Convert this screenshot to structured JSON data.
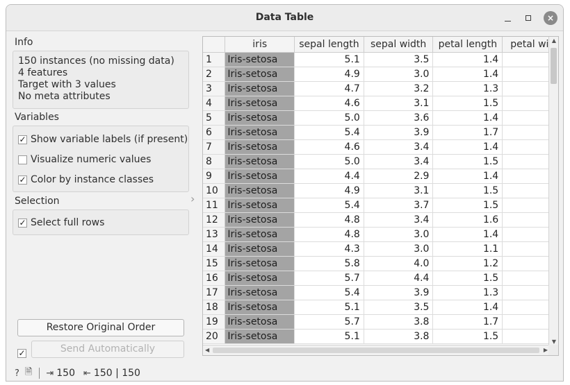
{
  "window": {
    "title": "Data Table",
    "close_glyph": "×"
  },
  "info": {
    "heading": "Info",
    "lines": [
      "150 instances (no missing data)",
      "4 features",
      "Target with 3 values",
      "No meta attributes"
    ]
  },
  "variables": {
    "heading": "Variables",
    "options": [
      {
        "label": "Show variable labels (if present)",
        "checked": true
      },
      {
        "label": "Visualize numeric values",
        "checked": false
      },
      {
        "label": "Color by instance classes",
        "checked": true
      }
    ]
  },
  "selection": {
    "heading": "Selection",
    "options": [
      {
        "label": "Select full rows",
        "checked": true
      }
    ]
  },
  "buttons": {
    "restore": "Restore Original Order",
    "send": "Send Automatically",
    "send_auto_checked": true
  },
  "statusbar": {
    "help_icon": "?",
    "report_icon": "report-icon",
    "input_count": "150",
    "output_count": "150 | 150"
  },
  "table": {
    "columns": [
      "iris",
      "sepal length",
      "sepal width",
      "petal length",
      "petal wi"
    ],
    "rows": [
      {
        "n": "1",
        "cls": "Iris-setosa",
        "v": [
          "5.1",
          "3.5",
          "1.4"
        ]
      },
      {
        "n": "2",
        "cls": "Iris-setosa",
        "v": [
          "4.9",
          "3.0",
          "1.4"
        ]
      },
      {
        "n": "3",
        "cls": "Iris-setosa",
        "v": [
          "4.7",
          "3.2",
          "1.3"
        ]
      },
      {
        "n": "4",
        "cls": "Iris-setosa",
        "v": [
          "4.6",
          "3.1",
          "1.5"
        ]
      },
      {
        "n": "5",
        "cls": "Iris-setosa",
        "v": [
          "5.0",
          "3.6",
          "1.4"
        ]
      },
      {
        "n": "6",
        "cls": "Iris-setosa",
        "v": [
          "5.4",
          "3.9",
          "1.7"
        ]
      },
      {
        "n": "7",
        "cls": "Iris-setosa",
        "v": [
          "4.6",
          "3.4",
          "1.4"
        ]
      },
      {
        "n": "8",
        "cls": "Iris-setosa",
        "v": [
          "5.0",
          "3.4",
          "1.5"
        ]
      },
      {
        "n": "9",
        "cls": "Iris-setosa",
        "v": [
          "4.4",
          "2.9",
          "1.4"
        ]
      },
      {
        "n": "10",
        "cls": "Iris-setosa",
        "v": [
          "4.9",
          "3.1",
          "1.5"
        ]
      },
      {
        "n": "11",
        "cls": "Iris-setosa",
        "v": [
          "5.4",
          "3.7",
          "1.5"
        ]
      },
      {
        "n": "12",
        "cls": "Iris-setosa",
        "v": [
          "4.8",
          "3.4",
          "1.6"
        ]
      },
      {
        "n": "13",
        "cls": "Iris-setosa",
        "v": [
          "4.8",
          "3.0",
          "1.4"
        ]
      },
      {
        "n": "14",
        "cls": "Iris-setosa",
        "v": [
          "4.3",
          "3.0",
          "1.1"
        ]
      },
      {
        "n": "15",
        "cls": "Iris-setosa",
        "v": [
          "5.8",
          "4.0",
          "1.2"
        ]
      },
      {
        "n": "16",
        "cls": "Iris-setosa",
        "v": [
          "5.7",
          "4.4",
          "1.5"
        ]
      },
      {
        "n": "17",
        "cls": "Iris-setosa",
        "v": [
          "5.4",
          "3.9",
          "1.3"
        ]
      },
      {
        "n": "18",
        "cls": "Iris-setosa",
        "v": [
          "5.1",
          "3.5",
          "1.4"
        ]
      },
      {
        "n": "19",
        "cls": "Iris-setosa",
        "v": [
          "5.7",
          "3.8",
          "1.7"
        ]
      },
      {
        "n": "20",
        "cls": "Iris-setosa",
        "v": [
          "5.1",
          "3.8",
          "1.5"
        ]
      }
    ]
  },
  "colors": {
    "class_cell": "#a4a4a4",
    "header_bg": "#f4f4f4",
    "panel_bg": "#f1f1f1"
  }
}
